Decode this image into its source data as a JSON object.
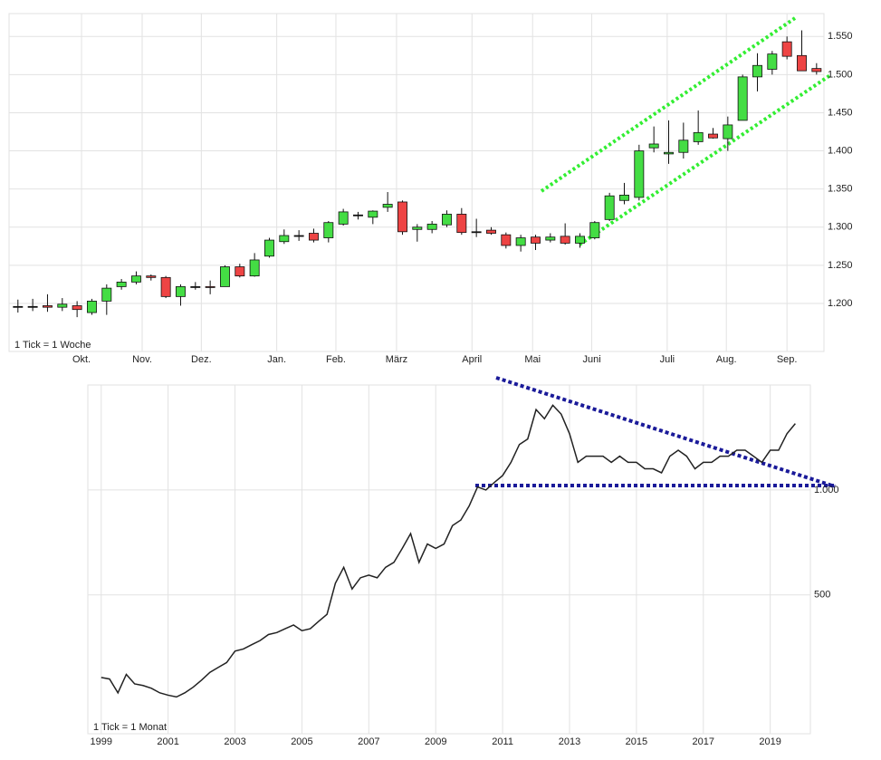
{
  "chart_data": [
    {
      "type": "candlestick",
      "note": "1 Tick = 1 Woche",
      "x": [
        0,
        1,
        2,
        3,
        4,
        5,
        6,
        7,
        8,
        9,
        10,
        11,
        12,
        13,
        14,
        15,
        16,
        17,
        18,
        19,
        20,
        21,
        22,
        23,
        24,
        25,
        26,
        27,
        28,
        29,
        30,
        31,
        32,
        33,
        34,
        35,
        36,
        37,
        38,
        39,
        40,
        41,
        42,
        43,
        44,
        45,
        46,
        47,
        48,
        49,
        50,
        51,
        52,
        53,
        54
      ],
      "open": [
        1.196,
        1.196,
        1.197,
        1.195,
        1.197,
        1.188,
        1.203,
        1.222,
        1.228,
        1.236,
        1.234,
        1.209,
        1.222,
        1.222,
        1.222,
        1.248,
        1.236,
        1.262,
        1.281,
        1.289,
        1.292,
        1.286,
        1.304,
        1.316,
        1.313,
        1.326,
        1.333,
        1.297,
        1.297,
        1.303,
        1.317,
        1.294,
        1.296,
        1.29,
        1.276,
        1.287,
        1.283,
        1.288,
        1.279,
        1.286,
        1.31,
        1.335,
        1.339,
        1.404,
        1.396,
        1.398,
        1.412,
        1.422,
        1.416,
        1.44,
        1.497,
        1.507,
        1.543,
        1.525,
        1.508
      ],
      "high": [
        1.205,
        1.206,
        1.212,
        1.207,
        1.203,
        1.206,
        1.225,
        1.232,
        1.242,
        1.238,
        1.236,
        1.225,
        1.228,
        1.23,
        1.25,
        1.252,
        1.266,
        1.286,
        1.297,
        1.296,
        1.298,
        1.308,
        1.324,
        1.32,
        1.322,
        1.346,
        1.335,
        1.304,
        1.308,
        1.322,
        1.325,
        1.311,
        1.3,
        1.293,
        1.29,
        1.29,
        1.292,
        1.305,
        1.292,
        1.308,
        1.345,
        1.358,
        1.408,
        1.432,
        1.44,
        1.437,
        1.453,
        1.43,
        1.445,
        1.5,
        1.528,
        1.531,
        1.55,
        1.558,
        1.515
      ],
      "low": [
        1.188,
        1.19,
        1.189,
        1.19,
        1.182,
        1.185,
        1.185,
        1.218,
        1.225,
        1.23,
        1.207,
        1.197,
        1.218,
        1.212,
        1.222,
        1.234,
        1.235,
        1.26,
        1.278,
        1.282,
        1.28,
        1.28,
        1.302,
        1.31,
        1.304,
        1.32,
        1.29,
        1.281,
        1.292,
        1.3,
        1.29,
        1.287,
        1.29,
        1.272,
        1.268,
        1.27,
        1.28,
        1.277,
        1.273,
        1.284,
        1.308,
        1.33,
        1.335,
        1.398,
        1.383,
        1.39,
        1.408,
        1.416,
        1.4,
        1.44,
        1.478,
        1.5,
        1.52,
        1.505,
        1.5
      ],
      "close": [
        1.196,
        1.196,
        1.195,
        1.199,
        1.192,
        1.203,
        1.22,
        1.228,
        1.236,
        1.234,
        1.209,
        1.222,
        1.222,
        1.221,
        1.248,
        1.236,
        1.257,
        1.283,
        1.289,
        1.289,
        1.283,
        1.306,
        1.32,
        1.316,
        1.321,
        1.33,
        1.294,
        1.3,
        1.304,
        1.317,
        1.293,
        1.294,
        1.292,
        1.276,
        1.286,
        1.279,
        1.287,
        1.279,
        1.288,
        1.306,
        1.341,
        1.342,
        1.4,
        1.409,
        1.398,
        1.414,
        1.424,
        1.417,
        1.434,
        1.497,
        1.512,
        1.527,
        1.524,
        1.505,
        1.504
      ],
      "up_color": "#44dd44",
      "down_color": "#ee4444",
      "xlim": [
        -0.6,
        54.5
      ],
      "xticks": [
        {
          "value": 4.3,
          "label": "Okt."
        },
        {
          "value": 8.4,
          "label": "Nov."
        },
        {
          "value": 12.4,
          "label": "Dez."
        },
        {
          "value": 17.5,
          "label": "Jan."
        },
        {
          "value": 21.5,
          "label": "Feb."
        },
        {
          "value": 25.6,
          "label": "März"
        },
        {
          "value": 30.7,
          "label": "April"
        },
        {
          "value": 34.8,
          "label": "Mai"
        },
        {
          "value": 38.8,
          "label": "Juni"
        },
        {
          "value": 43.9,
          "label": "Juli"
        },
        {
          "value": 47.9,
          "label": "Aug."
        },
        {
          "value": 52.0,
          "label": "Sep."
        }
      ],
      "ylim": [
        1.137,
        1.58
      ],
      "yticks": [
        {
          "value": 1.2,
          "label": "1.200"
        },
        {
          "value": 1.25,
          "label": "1.250"
        },
        {
          "value": 1.3,
          "label": "1.300"
        },
        {
          "value": 1.35,
          "label": "1.350"
        },
        {
          "value": 1.4,
          "label": "1.400"
        },
        {
          "value": 1.45,
          "label": "1.450"
        },
        {
          "value": 1.5,
          "label": "1.500"
        },
        {
          "value": 1.55,
          "label": "1.550"
        }
      ],
      "grid": true
    },
    {
      "type": "line",
      "note": "1 Tick = 1 Monat",
      "color": "#222222",
      "log_y": true,
      "x": [
        1999.0,
        1999.25,
        1999.5,
        1999.75,
        2000.0,
        2000.25,
        2000.5,
        2000.75,
        2001.0,
        2001.25,
        2001.5,
        2001.75,
        2002.0,
        2002.25,
        2002.5,
        2002.75,
        2003.0,
        2003.25,
        2003.5,
        2003.75,
        2004.0,
        2004.25,
        2004.5,
        2004.75,
        2005.0,
        2005.25,
        2005.5,
        2005.75,
        2006.0,
        2006.25,
        2006.5,
        2006.75,
        2007.0,
        2007.25,
        2007.5,
        2007.75,
        2008.0,
        2008.25,
        2008.5,
        2008.75,
        2009.0,
        2009.25,
        2009.5,
        2009.75,
        2010.0,
        2010.25,
        2010.5,
        2010.75,
        2011.0,
        2011.25,
        2011.5,
        2011.75,
        2012.0,
        2012.25,
        2012.5,
        2012.75,
        2013.0,
        2013.25,
        2013.5,
        2013.75,
        2014.0,
        2014.25,
        2014.5,
        2014.75,
        2015.0,
        2015.25,
        2015.5,
        2015.75,
        2016.0,
        2016.25,
        2016.5,
        2016.75,
        2017.0,
        2017.25,
        2017.5,
        2017.75,
        2018.0,
        2018.25,
        2018.5,
        2018.75,
        2019.0,
        2019.25,
        2019.5,
        2019.75
      ],
      "values": [
        290,
        287,
        262,
        296,
        278,
        275,
        270,
        262,
        258,
        255,
        262,
        272,
        285,
        300,
        310,
        320,
        345,
        350,
        360,
        370,
        385,
        390,
        400,
        410,
        395,
        400,
        420,
        440,
        540,
        600,
        520,
        560,
        570,
        560,
        600,
        620,
        680,
        750,
        620,
        700,
        680,
        700,
        790,
        820,
        900,
        1020,
        1000,
        1050,
        1100,
        1200,
        1350,
        1400,
        1700,
        1600,
        1750,
        1650,
        1450,
        1200,
        1250,
        1250,
        1250,
        1200,
        1250,
        1200,
        1200,
        1150,
        1150,
        1120,
        1250,
        1300,
        1250,
        1150,
        1200,
        1200,
        1250,
        1250,
        1300,
        1300,
        1250,
        1200,
        1300,
        1300,
        1450,
        1550
      ],
      "xlim": [
        1998.6,
        2020.2
      ],
      "xticks": [
        1999,
        2001,
        2003,
        2005,
        2007,
        2009,
        2011,
        2013,
        2015,
        2017,
        2019
      ],
      "ylim": [
        200,
        2000
      ],
      "yticks": [
        500,
        {
          "value": 1000,
          "label": "1.000"
        }
      ],
      "grid": true
    }
  ]
}
